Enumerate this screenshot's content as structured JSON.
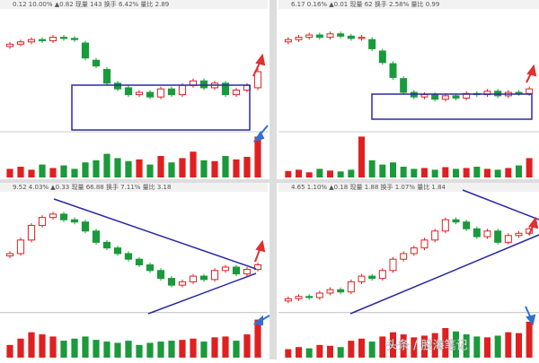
{
  "chart_data": [
    {
      "type": "candlestick",
      "header": "0.12 10.00% ▲0.82 现量 143 换手 6.42% 量比 2.89",
      "up_color": "#e02020",
      "down_color": "#1a9a3a",
      "ylim": [
        0,
        100
      ],
      "volume_ylim": [
        0,
        100
      ],
      "open": [
        72,
        74,
        76,
        78,
        77,
        80,
        79,
        75,
        60,
        52,
        40,
        36,
        30,
        32,
        28,
        35,
        30,
        38,
        42,
        36,
        40,
        30,
        34,
        36
      ],
      "high": [
        76,
        78,
        80,
        80,
        82,
        82,
        81,
        77,
        62,
        54,
        42,
        38,
        34,
        34,
        37,
        37,
        40,
        44,
        44,
        42,
        42,
        36,
        40,
        55
      ],
      "low": [
        70,
        72,
        74,
        75,
        75,
        77,
        76,
        60,
        53,
        38,
        33,
        28,
        28,
        26,
        26,
        28,
        28,
        36,
        34,
        34,
        28,
        28,
        32,
        34
      ],
      "close": [
        74,
        76,
        78,
        77,
        80,
        79,
        78,
        62,
        55,
        40,
        35,
        30,
        32,
        28,
        35,
        30,
        38,
        42,
        36,
        40,
        30,
        34,
        38,
        50
      ],
      "volume": [
        20,
        25,
        18,
        30,
        22,
        28,
        20,
        35,
        40,
        55,
        45,
        38,
        42,
        30,
        50,
        35,
        45,
        60,
        40,
        38,
        50,
        42,
        48,
        95
      ]
    },
    {
      "type": "candlestick",
      "header": "6.17 0.16% ▲0.01 现量 62 换手 2.58% 量比 0.99",
      "up_color": "#e02020",
      "down_color": "#1a9a3a",
      "ylim": [
        0,
        100
      ],
      "volume_ylim": [
        0,
        100
      ],
      "open": [
        76,
        78,
        80,
        82,
        80,
        83,
        81,
        79,
        78,
        68,
        57,
        44,
        32,
        28,
        30,
        26,
        29,
        27,
        31,
        30,
        33,
        29,
        32,
        31
      ],
      "high": [
        80,
        82,
        84,
        84,
        85,
        85,
        83,
        82,
        80,
        70,
        59,
        46,
        34,
        32,
        32,
        31,
        31,
        33,
        33,
        35,
        35,
        34,
        34,
        37
      ],
      "low": [
        74,
        76,
        78,
        78,
        78,
        79,
        77,
        77,
        68,
        56,
        43,
        30,
        26,
        26,
        24,
        24,
        25,
        25,
        28,
        28,
        27,
        27,
        29,
        29
      ],
      "close": [
        78,
        80,
        82,
        80,
        83,
        81,
        79,
        80,
        70,
        58,
        45,
        32,
        28,
        30,
        26,
        29,
        27,
        31,
        30,
        33,
        29,
        32,
        31,
        35
      ],
      "volume": [
        15,
        18,
        12,
        20,
        16,
        14,
        18,
        95,
        40,
        30,
        35,
        25,
        20,
        22,
        18,
        24,
        20,
        22,
        25,
        20,
        18,
        22,
        28,
        45
      ]
    },
    {
      "type": "candlestick",
      "header": "9.52 4.03% ▲0.33 现量 66.88 换手 7.11% 量比 3.18",
      "up_color": "#e02020",
      "down_color": "#1a9a3a",
      "ylim": [
        0,
        100
      ],
      "volume_ylim": [
        0,
        100
      ],
      "open": [
        48,
        50,
        62,
        75,
        82,
        85,
        80,
        78,
        70,
        60,
        55,
        50,
        45,
        40,
        35,
        28,
        22,
        25,
        30,
        27,
        35,
        38,
        32,
        36
      ],
      "high": [
        52,
        64,
        77,
        84,
        87,
        87,
        82,
        80,
        72,
        62,
        57,
        52,
        47,
        42,
        37,
        30,
        27,
        32,
        32,
        37,
        40,
        40,
        38,
        42
      ],
      "low": [
        46,
        48,
        60,
        73,
        80,
        78,
        76,
        68,
        58,
        53,
        48,
        43,
        38,
        33,
        26,
        20,
        20,
        23,
        25,
        25,
        33,
        30,
        30,
        34
      ],
      "close": [
        50,
        62,
        75,
        82,
        85,
        80,
        78,
        70,
        60,
        55,
        50,
        45,
        40,
        35,
        28,
        22,
        25,
        30,
        27,
        35,
        38,
        32,
        36,
        40
      ],
      "volume": [
        30,
        45,
        60,
        55,
        50,
        40,
        45,
        50,
        42,
        38,
        35,
        40,
        30,
        35,
        38,
        40,
        42,
        45,
        38,
        48,
        50,
        40,
        55,
        90
      ]
    },
    {
      "type": "candlestick",
      "header": "4.65 1.10% ▲0.18 现量 1.88 换手 1.07% 量比 1.84",
      "up_color": "#e02020",
      "down_color": "#1a9a3a",
      "ylim": [
        0,
        100
      ],
      "volume_ylim": [
        0,
        100
      ],
      "open": [
        8,
        10,
        12,
        11,
        15,
        18,
        16,
        25,
        30,
        28,
        35,
        45,
        50,
        55,
        62,
        70,
        80,
        78,
        72,
        65,
        70,
        60,
        66,
        68
      ],
      "high": [
        12,
        14,
        14,
        17,
        20,
        20,
        27,
        32,
        32,
        37,
        47,
        52,
        57,
        64,
        72,
        82,
        82,
        80,
        74,
        72,
        72,
        68,
        70,
        74
      ],
      "low": [
        6,
        8,
        9,
        9,
        13,
        14,
        14,
        23,
        26,
        26,
        33,
        43,
        48,
        53,
        60,
        68,
        76,
        70,
        63,
        63,
        58,
        58,
        64,
        66
      ],
      "close": [
        10,
        12,
        11,
        15,
        18,
        16,
        25,
        30,
        28,
        35,
        45,
        50,
        55,
        62,
        70,
        80,
        78,
        72,
        65,
        70,
        60,
        66,
        68,
        72
      ],
      "volume": [
        20,
        25,
        22,
        30,
        28,
        25,
        40,
        45,
        38,
        50,
        60,
        55,
        48,
        52,
        58,
        70,
        62,
        55,
        50,
        48,
        52,
        60,
        58,
        85
      ]
    }
  ],
  "watermark": "头条 / 股海笔记"
}
